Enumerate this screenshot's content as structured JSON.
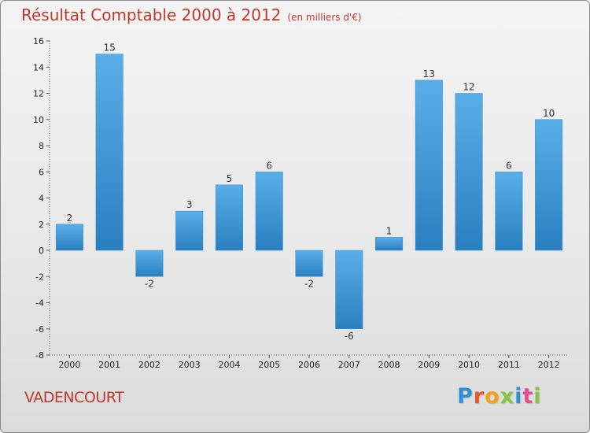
{
  "chart_data": {
    "type": "bar",
    "title": "Résultat Comptable 2000 à 2012",
    "subtitle": "(en milliers d'€)",
    "categories": [
      "2000",
      "2001",
      "2002",
      "2003",
      "2004",
      "2005",
      "2006",
      "2007",
      "2008",
      "2009",
      "2010",
      "2011",
      "2012"
    ],
    "values": [
      2,
      15,
      -2,
      3,
      5,
      6,
      -2,
      -6,
      1,
      13,
      12,
      6,
      10
    ],
    "ylim": [
      -8,
      16
    ],
    "yticks": [
      -8,
      -6,
      -4,
      -2,
      0,
      2,
      4,
      6,
      8,
      10,
      12,
      14,
      16
    ],
    "xlabel": "",
    "ylabel": "",
    "grid": false,
    "bar_color_top": "#5aaee8",
    "bar_color_bottom": "#2a7fc0"
  },
  "footer": {
    "commune": "VADENCOURT",
    "logo": "Proxiti"
  },
  "colors": {
    "title": "#c0392b",
    "logo_letters": [
      "#2e8ed8",
      "#e8562b",
      "#f0a318",
      "#8bc53f",
      "#2e8ed8",
      "#e84c8b",
      "#8bc53f"
    ]
  }
}
